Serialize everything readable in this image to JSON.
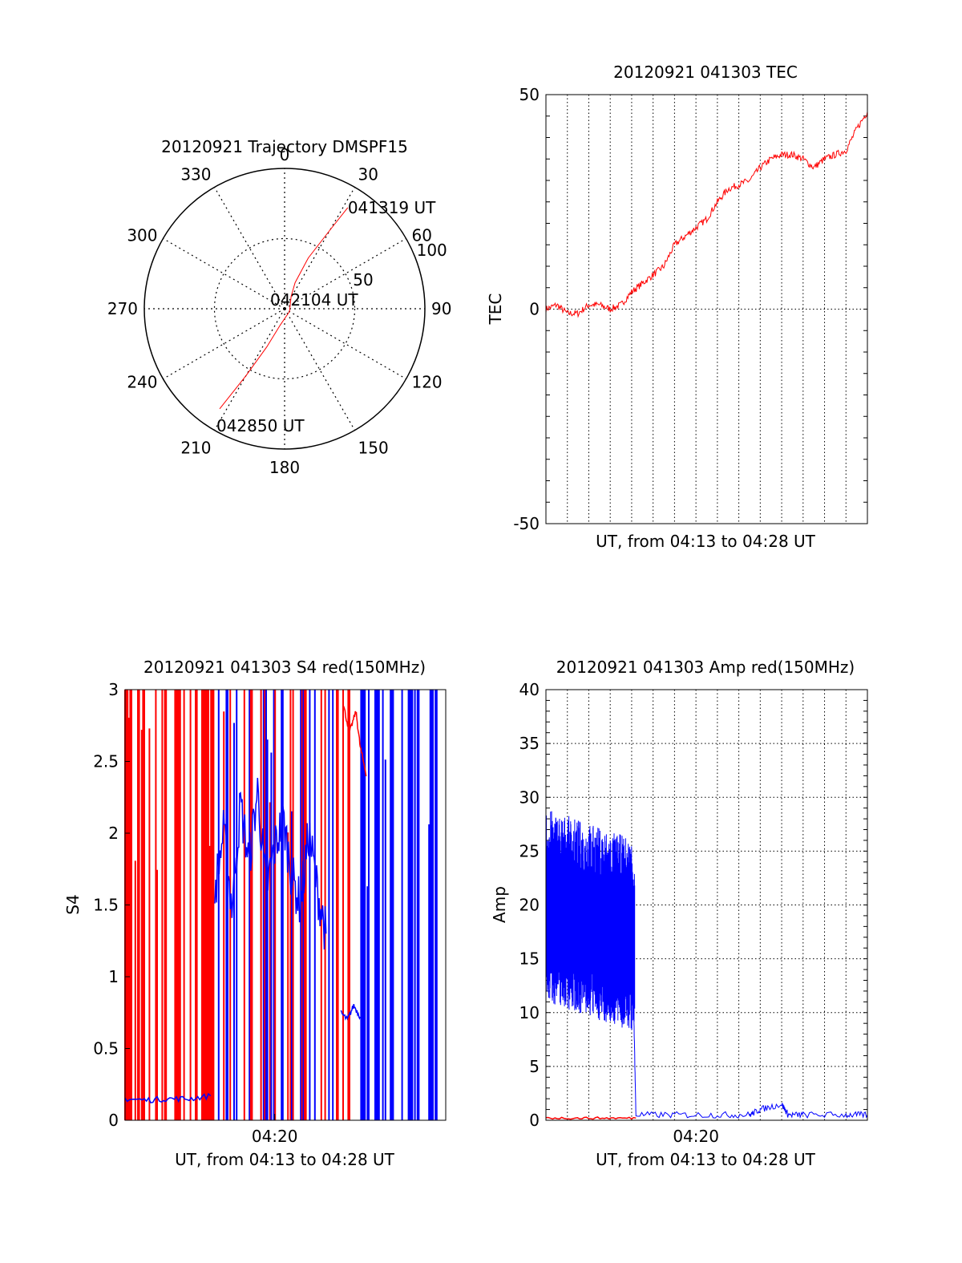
{
  "colors": {
    "red": "#ff0000",
    "blue": "#0000ff",
    "axis": "#000000"
  },
  "chart_data": [
    {
      "type": "polar",
      "title": "20120921 Trajectory DMSPF15",
      "angle_labels": [
        "0",
        "30",
        "60",
        "90",
        "120",
        "150",
        "180",
        "210",
        "240",
        "270",
        "300",
        "330"
      ],
      "radial_tick_labels": [
        "50",
        "100"
      ],
      "rlim": [
        0,
        100
      ],
      "trajectory": {
        "color": "red",
        "points": [
          {
            "az": 32,
            "r": 85
          },
          {
            "az": 30,
            "r": 65
          },
          {
            "az": 25,
            "r": 40
          },
          {
            "az": 22,
            "r": 20
          },
          {
            "az": 28,
            "r": 10
          },
          {
            "az": 120,
            "r": 4
          },
          {
            "az": 195,
            "r": 12
          },
          {
            "az": 205,
            "r": 30
          },
          {
            "az": 210,
            "r": 55
          },
          {
            "az": 213,
            "r": 85
          }
        ]
      },
      "annotations": [
        {
          "text": "041319 UT",
          "at_point": "start"
        },
        {
          "text": "042104 UT",
          "at_point": "middle"
        },
        {
          "text": "042850 UT",
          "at_point": "end"
        }
      ]
    },
    {
      "type": "line",
      "title": "20120921 041303 TEC",
      "xlabel": "UT, from 04:13 to 04:28 UT",
      "ylabel": "TEC",
      "xlim": [
        0,
        15
      ],
      "ylim": [
        -50,
        50
      ],
      "yticks": [
        "50",
        "0",
        "-50"
      ],
      "grid": true,
      "series": [
        {
          "color": "red",
          "x": [
            0,
            0.5,
            1,
            1.5,
            2,
            2.5,
            3,
            3.5,
            4,
            4.5,
            5,
            5.5,
            6,
            6.5,
            7,
            7.5,
            8,
            8.5,
            9,
            9.5,
            10,
            10.5,
            11,
            11.5,
            12,
            12.5,
            13,
            13.5,
            14,
            14.5,
            15
          ],
          "y": [
            0,
            1,
            -1,
            -1,
            1,
            1,
            0,
            1,
            4,
            6,
            8,
            10,
            15,
            17,
            19,
            21,
            25,
            28,
            29,
            30,
            33,
            35,
            36,
            36,
            35,
            33,
            35,
            36,
            37,
            42,
            46
          ]
        }
      ]
    },
    {
      "type": "line",
      "title": "20120921 041303 S4 red(150MHz)",
      "xlabel": "UT, from 04:13 to 04:28 UT",
      "ylabel": "S4",
      "xlim": [
        0,
        15
      ],
      "ylim": [
        0,
        3
      ],
      "yticks": [
        "0",
        "0.5",
        "1",
        "1.5",
        "2",
        "2.5",
        "3"
      ],
      "xticks": [
        {
          "value": 7,
          "label": "04:20"
        }
      ],
      "series": [
        {
          "color": "blue",
          "x": [
            0,
            1,
            2,
            3,
            4
          ],
          "y": [
            0.15,
            0.14,
            0.15,
            0.15,
            0.17
          ]
        },
        {
          "color": "blue",
          "x": [
            4.2,
            4.6,
            5,
            5.4,
            5.8,
            6.2,
            6.6,
            7,
            7.4,
            7.8,
            8.2,
            8.6,
            9,
            9.4
          ],
          "y": [
            1.6,
            2.0,
            1.5,
            2.2,
            1.8,
            2.3,
            1.6,
            1.9,
            2.1,
            1.7,
            1.5,
            2.0,
            1.6,
            1.3
          ]
        },
        {
          "color": "blue",
          "x": [
            10.1,
            10.4,
            10.7,
            11.0
          ],
          "y": [
            0.75,
            0.7,
            0.8,
            0.72
          ]
        },
        {
          "color": "red",
          "x": [
            10.2,
            10.5,
            10.8,
            11.0,
            11.3
          ],
          "y": [
            2.9,
            2.7,
            2.85,
            2.6,
            2.4
          ]
        }
      ]
    },
    {
      "type": "line",
      "title": "20120921 041303 Amp red(150MHz)",
      "xlabel": "UT, from 04:13 to 04:28 UT",
      "ylabel": "Amp",
      "xlim": [
        0,
        15
      ],
      "ylim": [
        0,
        40
      ],
      "yticks": [
        "0",
        "5",
        "10",
        "15",
        "20",
        "25",
        "30",
        "35",
        "40"
      ],
      "xticks": [
        {
          "value": 7,
          "label": "04:20"
        }
      ],
      "grid": true,
      "series": [
        {
          "color": "blue",
          "x": [
            0,
            1,
            2,
            3,
            4,
            4.1,
            4.2,
            6,
            8,
            9.5,
            10,
            11,
            11.3,
            12,
            14,
            15
          ],
          "y": [
            20,
            20,
            19,
            18,
            17,
            10,
            0.5,
            0.5,
            0.5,
            0.5,
            1,
            1.5,
            0.5,
            0.5,
            0.5,
            0.5
          ]
        },
        {
          "color": "red",
          "x": [
            0,
            4.2
          ],
          "y": [
            0.2,
            0.2
          ]
        }
      ]
    }
  ]
}
